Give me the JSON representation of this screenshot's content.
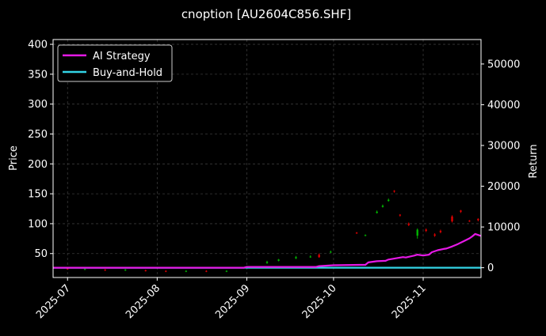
{
  "chart_data": {
    "type": "candlestick-line",
    "title": "cnoption [AU2604C856.SHF]",
    "ylabel_left": "Price",
    "ylabel_right": "Return",
    "ylim_left": [
      10,
      408
    ],
    "ylim_right": [
      -2400,
      56000
    ],
    "xlim": [
      "2025-06-26",
      "2025-11-21"
    ],
    "grid": true,
    "legend_position": "upper-left",
    "left_ticks": [
      50,
      100,
      150,
      200,
      250,
      300,
      350,
      400
    ],
    "right_ticks": [
      0,
      10000,
      20000,
      30000,
      40000,
      50000
    ],
    "x_ticks": [
      "2025-07",
      "2025-08",
      "2025-09",
      "2025-10",
      "2025-11"
    ],
    "x_tick_dates": [
      "2025-07-01",
      "2025-08-01",
      "2025-09-01",
      "2025-10-01",
      "2025-11-01"
    ],
    "colors": {
      "background": "#000000",
      "grid": "#3a3a3a",
      "ai_strategy": "#e619e6",
      "buy_and_hold": "#33d4e6",
      "up_candle": "#00b400",
      "down_candle": "#e00000"
    },
    "series": [
      {
        "name": "AI Strategy",
        "axis": "right",
        "x": [
          "2025-06-26",
          "2025-08-31",
          "2025-09-01",
          "2025-09-25",
          "2025-09-26",
          "2025-10-01",
          "2025-10-10",
          "2025-10-12",
          "2025-10-13",
          "2025-10-16",
          "2025-10-19",
          "2025-10-20",
          "2025-10-25",
          "2025-10-26",
          "2025-10-29",
          "2025-10-30",
          "2025-11-01",
          "2025-11-03",
          "2025-11-04",
          "2025-11-06",
          "2025-11-08",
          "2025-11-09",
          "2025-11-11",
          "2025-11-13",
          "2025-11-15",
          "2025-11-17",
          "2025-11-18",
          "2025-11-19",
          "2025-11-21"
        ],
        "values": [
          0,
          0,
          200,
          200,
          400,
          600,
          700,
          700,
          1300,
          1600,
          1700,
          2000,
          2600,
          2500,
          3000,
          3200,
          3000,
          3200,
          3800,
          4300,
          4600,
          4700,
          5200,
          5800,
          6500,
          7200,
          7700,
          8300,
          7800
        ]
      },
      {
        "name": "Buy-and-Hold",
        "axis": "right",
        "x": [
          "2025-06-26",
          "2025-11-21"
        ],
        "values": [
          0,
          0
        ]
      }
    ],
    "candles": [
      {
        "date": "2025-07-01",
        "open": 25,
        "close": 24,
        "high": 26,
        "low": 23
      },
      {
        "date": "2025-07-07",
        "open": 24,
        "close": 24,
        "high": 25,
        "low": 23
      },
      {
        "date": "2025-07-14",
        "open": 23,
        "close": 22,
        "high": 24,
        "low": 21
      },
      {
        "date": "2025-07-21",
        "open": 22,
        "close": 23,
        "high": 24,
        "low": 21
      },
      {
        "date": "2025-07-28",
        "open": 22,
        "close": 21,
        "high": 23,
        "low": 20
      },
      {
        "date": "2025-08-04",
        "open": 21,
        "close": 20,
        "high": 22,
        "low": 19
      },
      {
        "date": "2025-08-11",
        "open": 20,
        "close": 21,
        "high": 22,
        "low": 19
      },
      {
        "date": "2025-08-18",
        "open": 21,
        "close": 20,
        "high": 22,
        "low": 19
      },
      {
        "date": "2025-08-25",
        "open": 20,
        "close": 21,
        "high": 22,
        "low": 19
      },
      {
        "date": "2025-09-08",
        "open": 34,
        "close": 36,
        "high": 38,
        "low": 33
      },
      {
        "date": "2025-09-12",
        "open": 38,
        "close": 40,
        "high": 41,
        "low": 37
      },
      {
        "date": "2025-09-18",
        "open": 42,
        "close": 44,
        "high": 46,
        "low": 41
      },
      {
        "date": "2025-09-23",
        "open": 44,
        "close": 45,
        "high": 47,
        "low": 43
      },
      {
        "date": "2025-09-26",
        "open": 48,
        "close": 44,
        "high": 50,
        "low": 43
      },
      {
        "date": "2025-09-30",
        "open": 52,
        "close": 53,
        "high": 55,
        "low": 51
      },
      {
        "date": "2025-10-09",
        "open": 85,
        "close": 84,
        "high": 86,
        "low": 83
      },
      {
        "date": "2025-10-12",
        "open": 80,
        "close": 81,
        "high": 82,
        "low": 79
      },
      {
        "date": "2025-10-16",
        "open": 118,
        "close": 120,
        "high": 122,
        "low": 117
      },
      {
        "date": "2025-10-18",
        "open": 128,
        "close": 130,
        "high": 132,
        "low": 127
      },
      {
        "date": "2025-10-20",
        "open": 138,
        "close": 140,
        "high": 142,
        "low": 137
      },
      {
        "date": "2025-10-22",
        "open": 155,
        "close": 154,
        "high": 156,
        "low": 152
      },
      {
        "date": "2025-10-24",
        "open": 115,
        "close": 114,
        "high": 116,
        "low": 112
      },
      {
        "date": "2025-10-27",
        "open": 100,
        "close": 98,
        "high": 102,
        "low": 96
      },
      {
        "date": "2025-10-30",
        "open": 80,
        "close": 90,
        "high": 92,
        "low": 75
      },
      {
        "date": "2025-11-02",
        "open": 90,
        "close": 88,
        "high": 92,
        "low": 86
      },
      {
        "date": "2025-11-05",
        "open": 82,
        "close": 80,
        "high": 84,
        "low": 78
      },
      {
        "date": "2025-11-07",
        "open": 88,
        "close": 86,
        "high": 90,
        "low": 84
      },
      {
        "date": "2025-11-11",
        "open": 112,
        "close": 104,
        "high": 114,
        "low": 102
      },
      {
        "date": "2025-11-14",
        "open": 122,
        "close": 120,
        "high": 123,
        "low": 118
      },
      {
        "date": "2025-11-17",
        "open": 105,
        "close": 104,
        "high": 106,
        "low": 103
      },
      {
        "date": "2025-11-20",
        "open": 108,
        "close": 106,
        "high": 109,
        "low": 104
      }
    ]
  }
}
